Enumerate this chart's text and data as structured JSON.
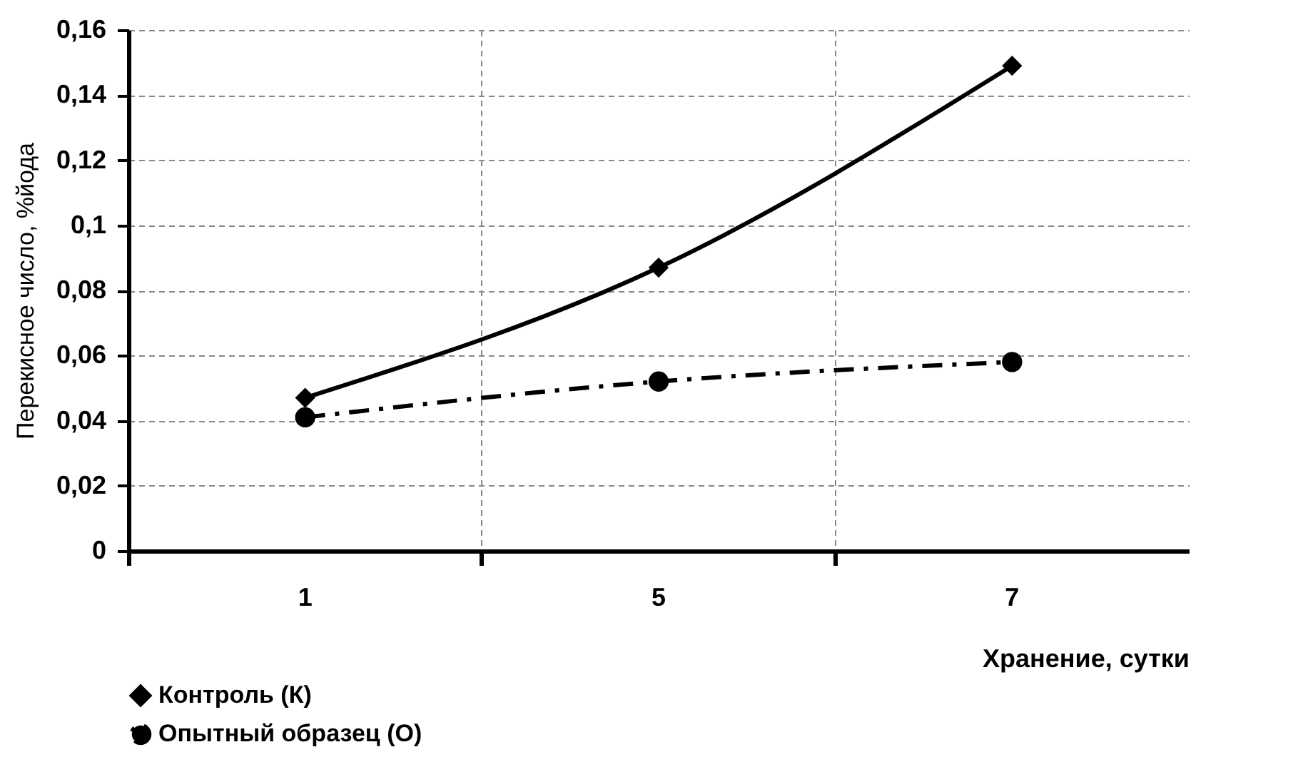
{
  "chart_data": {
    "type": "line",
    "xlabel": "Хранение, сутки",
    "ylabel": "Перекисное число, %йода",
    "categories": [
      "1",
      "5",
      "7"
    ],
    "series": [
      {
        "name": "Контроль (К)",
        "color": "#000000",
        "values": [
          0.047,
          0.087,
          0.149
        ],
        "marker": "diamond",
        "line_style": "solid"
      },
      {
        "name": "Опытный образец (О)",
        "color": "#000000",
        "values": [
          0.041,
          0.052,
          0.058
        ],
        "marker": "circle",
        "line_style": "dashed"
      }
    ],
    "ylim": [
      0,
      0.16
    ],
    "yticks": [
      0,
      {
        "value": 0.02,
        "label": "0,02"
      },
      {
        "value": 0.04,
        "label": "0,04"
      },
      {
        "value": 0.06,
        "label": "0,06"
      },
      {
        "value": 0.08,
        "label": "0,08"
      },
      {
        "value": 0.1,
        "label": "0,1"
      },
      {
        "value": 0.12,
        "label": "0,12"
      },
      {
        "value": 0.14,
        "label": "0,14"
      },
      {
        "value": 0.16,
        "label": "0,16"
      }
    ],
    "grid": true,
    "legend": "bottom left"
  }
}
